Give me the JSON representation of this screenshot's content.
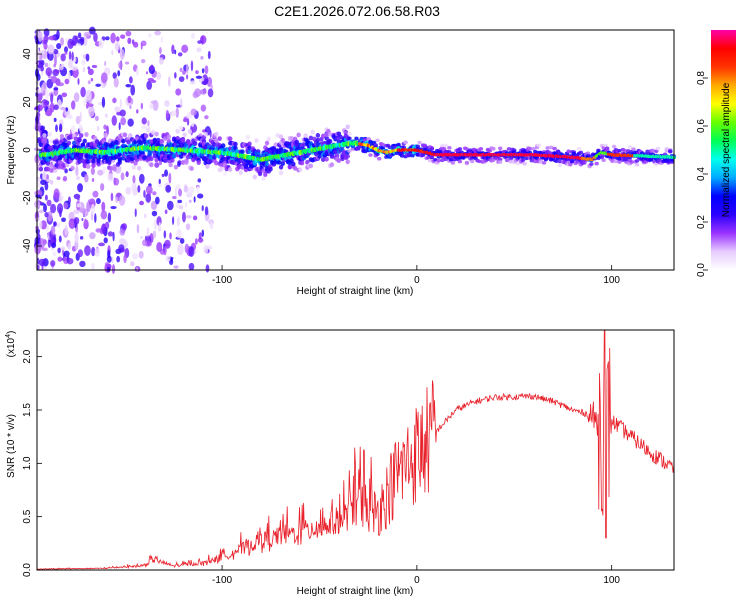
{
  "title": "C2E1.2026.072.06.58.R03",
  "chart_data": [
    {
      "type": "heatmap",
      "name": "spectrogram",
      "xlabel": "Height of straight line (km)",
      "ylabel": "Frequency (Hz)",
      "xlim": [
        -195,
        132
      ],
      "ylim": [
        -50,
        50
      ],
      "xticks": [
        -100,
        0,
        100
      ],
      "xtick_labels": [
        "-100",
        "0",
        "100"
      ],
      "yticks": [
        -40,
        -20,
        0,
        20,
        40
      ],
      "ytick_labels": [
        "-40",
        "-20",
        "0",
        "20",
        "40"
      ],
      "ridge": [
        {
          "x": -190,
          "y": -2
        },
        {
          "x": -175,
          "y": 0
        },
        {
          "x": -160,
          "y": -1
        },
        {
          "x": -140,
          "y": 1
        },
        {
          "x": -120,
          "y": 0
        },
        {
          "x": -100,
          "y": -1
        },
        {
          "x": -80,
          "y": -4
        },
        {
          "x": -60,
          "y": -1
        },
        {
          "x": -40,
          "y": 2
        },
        {
          "x": -32,
          "y": 3
        },
        {
          "x": -25,
          "y": 2
        },
        {
          "x": -20,
          "y": 0
        },
        {
          "x": -15,
          "y": -1
        },
        {
          "x": -10,
          "y": 0
        },
        {
          "x": 0,
          "y": 0
        },
        {
          "x": 10,
          "y": -2
        },
        {
          "x": 30,
          "y": -2
        },
        {
          "x": 60,
          "y": -2
        },
        {
          "x": 80,
          "y": -3
        },
        {
          "x": 90,
          "y": -4
        },
        {
          "x": 95,
          "y": -1
        },
        {
          "x": 100,
          "y": -2
        },
        {
          "x": 132,
          "y": -3
        }
      ],
      "colorbar": {
        "label": "Normalized spectral amplitude",
        "range": [
          0,
          1
        ],
        "ticks": [
          0.0,
          0.2,
          0.4,
          0.6,
          0.8
        ],
        "tick_labels": [
          "0.0",
          "0.2",
          "0.4",
          "0.6",
          "0.8"
        ],
        "colors": [
          "#ffffff",
          "#e6ccff",
          "#9a33ff",
          "#2a00ff",
          "#0000ff",
          "#00aaff",
          "#00ffee",
          "#00ff55",
          "#66ff00",
          "#ffff00",
          "#ffaa00",
          "#ff3300",
          "#ff0000",
          "#ff00aa"
        ]
      }
    },
    {
      "type": "line",
      "name": "snr",
      "xlabel": "Height of straight line (km)",
      "ylabel": "SNR (10 * v/v)",
      "scale_label": "(x10",
      "scale_exponent": "4",
      "xlim": [
        -195,
        132
      ],
      "ylim": [
        0,
        2.25
      ],
      "xticks": [
        -100,
        0,
        100
      ],
      "xtick_labels": [
        "-100",
        "0",
        "100"
      ],
      "yticks": [
        0.0,
        0.5,
        1.0,
        1.5,
        2.0
      ],
      "ytick_labels": [
        "0.0",
        "0.5",
        "1.0",
        "1.5",
        "2.0"
      ],
      "color": "#e8202a",
      "envelope": [
        {
          "x": -195,
          "y": 0.01
        },
        {
          "x": -160,
          "y": 0.02
        },
        {
          "x": -140,
          "y": 0.05
        },
        {
          "x": -135,
          "y": 0.12
        },
        {
          "x": -125,
          "y": 0.05
        },
        {
          "x": -110,
          "y": 0.08
        },
        {
          "x": -100,
          "y": 0.15
        },
        {
          "x": -90,
          "y": 0.25
        },
        {
          "x": -80,
          "y": 0.35
        },
        {
          "x": -70,
          "y": 0.4
        },
        {
          "x": -60,
          "y": 0.45
        },
        {
          "x": -50,
          "y": 0.5
        },
        {
          "x": -40,
          "y": 0.6
        },
        {
          "x": -30,
          "y": 0.72
        },
        {
          "x": -20,
          "y": 0.55
        },
        {
          "x": -10,
          "y": 0.9
        },
        {
          "x": 0,
          "y": 1.1
        },
        {
          "x": 10,
          "y": 1.3
        },
        {
          "x": 20,
          "y": 1.5
        },
        {
          "x": 30,
          "y": 1.58
        },
        {
          "x": 40,
          "y": 1.62
        },
        {
          "x": 60,
          "y": 1.63
        },
        {
          "x": 70,
          "y": 1.58
        },
        {
          "x": 80,
          "y": 1.5
        },
        {
          "x": 90,
          "y": 1.45
        },
        {
          "x": 95,
          "y": 1.3
        },
        {
          "x": 100,
          "y": 1.4
        },
        {
          "x": 110,
          "y": 1.25
        },
        {
          "x": 120,
          "y": 1.1
        },
        {
          "x": 132,
          "y": 0.95
        }
      ]
    }
  ]
}
